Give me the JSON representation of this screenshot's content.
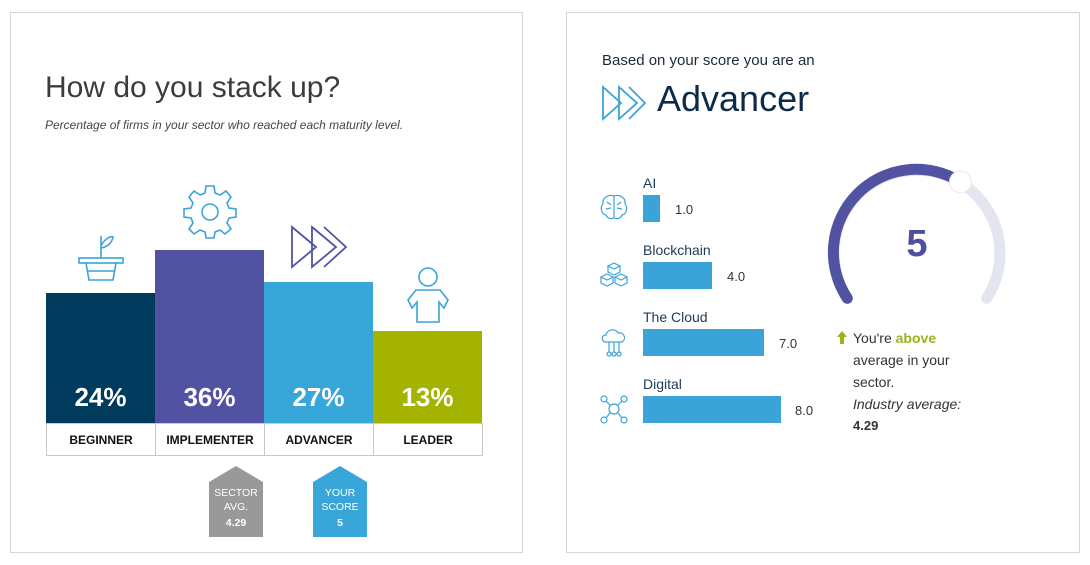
{
  "left": {
    "title": "How do you stack up?",
    "subtitle": "Percentage of firms in your sector who reached each maturity level.",
    "levels": [
      {
        "label": "BEGINNER",
        "percent": "24%",
        "color": "#003a5c",
        "icon": "plant-icon"
      },
      {
        "label": "IMPLEMENTER",
        "percent": "36%",
        "color": "#5252a3",
        "icon": "gear-icon"
      },
      {
        "label": "ADVANCER",
        "percent": "27%",
        "color": "#38a6d9",
        "icon": "fast-forward-icon"
      },
      {
        "label": "LEADER",
        "percent": "13%",
        "color": "#a4b300",
        "icon": "person-icon"
      }
    ],
    "sector_marker": {
      "line1": "SECTOR",
      "line2": "AVG.",
      "value": "4.29",
      "color": "#999999"
    },
    "score_marker": {
      "line1": "YOUR",
      "line2": "SCORE",
      "value": "5",
      "color": "#38a6d9"
    }
  },
  "right": {
    "intro": "Based on your score you are an",
    "level": "Advancer",
    "skills": [
      {
        "name": "AI",
        "value": "1.0",
        "icon": "brain-icon"
      },
      {
        "name": "Blockchain",
        "value": "4.0",
        "icon": "blockchain-icon"
      },
      {
        "name": "The Cloud",
        "value": "7.0",
        "icon": "cloud-icon"
      },
      {
        "name": "Digital",
        "value": "8.0",
        "icon": "network-icon"
      }
    ],
    "gauge": {
      "value": "5",
      "color": "#5252a3",
      "track_color": "#e3e5ef"
    },
    "comparison": {
      "prefix": "You're",
      "emphasis": "above",
      "rest1": "average in your",
      "rest2": "sector.",
      "industry_label": "Industry average:",
      "industry_value": "4.29"
    }
  }
}
